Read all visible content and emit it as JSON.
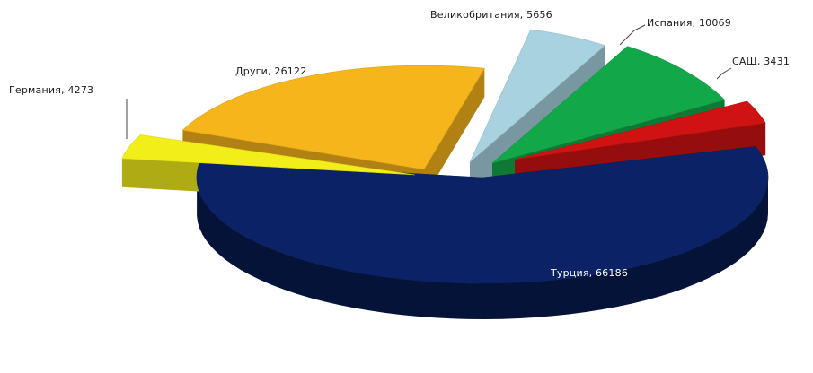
{
  "chart_data": {
    "type": "pie",
    "style": "3d-exploded",
    "legend": "none",
    "slices": [
      {
        "label": "Турция",
        "value": 66186,
        "text": "Турция, 66186",
        "color": "#0b2366"
      },
      {
        "label": "Германия",
        "value": 4273,
        "text": "Германия, 4273",
        "color": "#f2ee1a"
      },
      {
        "label": "Други",
        "value": 26122,
        "text": "Други, 26122",
        "color": "#f6b51b"
      },
      {
        "label": "Великобритания",
        "value": 5656,
        "text": "Великобритания, 5656",
        "color": "#a8d2e0"
      },
      {
        "label": "Испания",
        "value": 10069,
        "text": "Испания, 10069",
        "color": "#12a84a"
      },
      {
        "label": "САЩ",
        "value": 3431,
        "text": "САЩ, 3431",
        "color": "#cf1212"
      }
    ]
  }
}
